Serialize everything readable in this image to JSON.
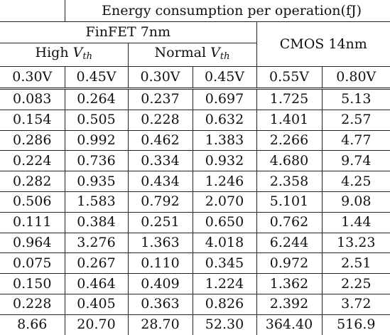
{
  "header": {
    "title": "Energy consumption per operation(fJ)",
    "finfet": "FinFET 7nm",
    "cmos": "CMOS 14nm",
    "high_prefix": "High ",
    "normal_prefix": "Normal ",
    "vth_symbol": "V",
    "vth_sub": "th",
    "voltages": [
      "0.30V",
      "0.45V",
      "0.30V",
      "0.45V",
      "0.55V",
      "0.80V"
    ]
  },
  "rows": [
    [
      "0.083",
      "0.264",
      "0.237",
      "0.697",
      "1.725",
      "5.13"
    ],
    [
      "0.154",
      "0.505",
      "0.228",
      "0.632",
      "1.401",
      "2.57"
    ],
    [
      "0.286",
      "0.992",
      "0.462",
      "1.383",
      "2.266",
      "4.77"
    ],
    [
      "0.224",
      "0.736",
      "0.334",
      "0.932",
      "4.680",
      "9.74"
    ],
    [
      "0.282",
      "0.935",
      "0.434",
      "1.246",
      "2.358",
      "4.25"
    ],
    [
      "0.506",
      "1.583",
      "0.792",
      "2.070",
      "5.101",
      "9.08"
    ],
    [
      "0.111",
      "0.384",
      "0.251",
      "0.650",
      "0.762",
      "1.44"
    ],
    [
      "0.964",
      "3.276",
      "1.363",
      "4.018",
      "6.244",
      "13.23"
    ],
    [
      "0.075",
      "0.267",
      "0.110",
      "0.345",
      "0.972",
      "2.51"
    ],
    [
      "0.150",
      "0.464",
      "0.409",
      "1.224",
      "1.362",
      "2.25"
    ],
    [
      "0.228",
      "0.405",
      "0.363",
      "0.826",
      "2.392",
      "3.72"
    ],
    [
      "8.66",
      "20.70",
      "28.70",
      "52.30",
      "364.40",
      "516.9"
    ]
  ]
}
